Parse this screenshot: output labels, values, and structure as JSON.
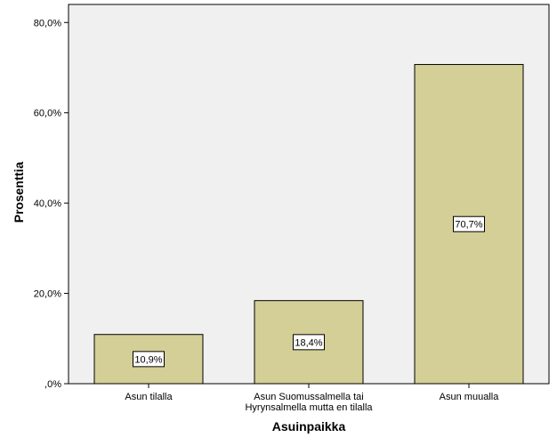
{
  "chart_data": {
    "type": "bar",
    "categories": [
      [
        "Asun tilalla"
      ],
      [
        "Asun Suomussalmella tai",
        "Hyrynsalmella mutta en tilalla"
      ],
      [
        "Asun muualla"
      ]
    ],
    "values": [
      10.9,
      18.4,
      70.7
    ],
    "data_labels": [
      "10,9%",
      "18,4%",
      "70,7%"
    ],
    "xlabel": "Asuinpaikka",
    "ylabel": "Prosenttia",
    "ylim": [
      0,
      84
    ],
    "y_ticks": [
      0,
      20,
      40,
      60,
      80
    ],
    "y_tick_labels": [
      ",0%",
      "20,0%",
      "40,0%",
      "60,0%",
      "80,0%"
    ],
    "grid": false,
    "colors": {
      "bar_fill": "#d3cf96",
      "bar_stroke": "#000000",
      "plot_background": "#f0f0f0"
    }
  }
}
